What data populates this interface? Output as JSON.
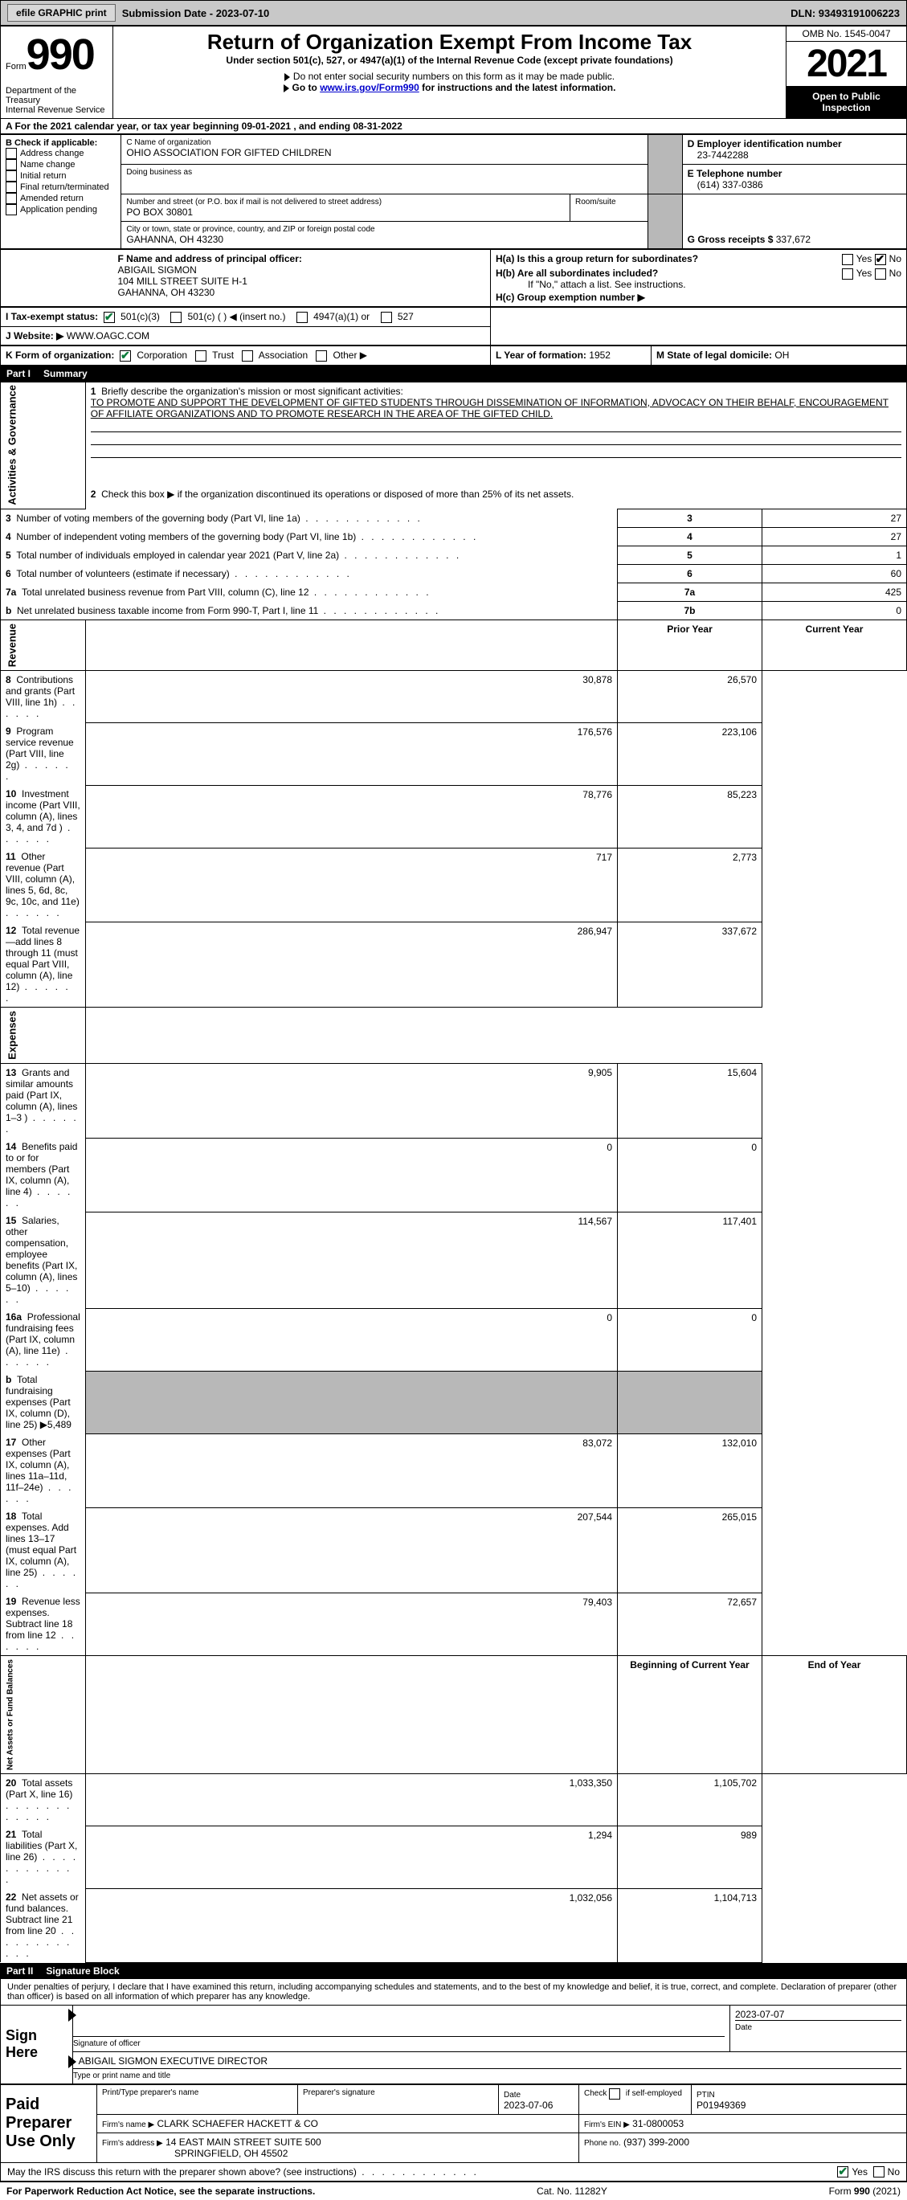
{
  "toolbar": {
    "efile_label": "efile GRAPHIC print",
    "submission_label": "Submission Date - 2023-07-10",
    "dln_label": "DLN: 93493191006223"
  },
  "header": {
    "form_label": "Form",
    "form_number": "990",
    "dept_label": "Department of the Treasury\nInternal Revenue Service",
    "title": "Return of Organization Exempt From Income Tax",
    "subtitle": "Under section 501(c), 527, or 4947(a)(1) of the Internal Revenue Code (except private foundations)",
    "ssn_note": "Do not enter social security numbers on this form as it may be made public.",
    "goto_prefix": "Go to ",
    "goto_link": "www.irs.gov/Form990",
    "goto_suffix": " for instructions and the latest information.",
    "omb": "OMB No. 1545-0047",
    "year": "2021",
    "open_inspect": "Open to Public Inspection"
  },
  "sectionA": {
    "line": "A For the 2021 calendar year, or tax year beginning 09-01-2021   , and ending 08-31-2022"
  },
  "sectionB": {
    "label": "B Check if applicable:",
    "items": [
      "Address change",
      "Name change",
      "Initial return",
      "Final return/terminated",
      "Amended return",
      "Application pending"
    ]
  },
  "sectionC": {
    "name_label": "C Name of organization",
    "name": "OHIO ASSOCIATION FOR GIFTED CHILDREN",
    "dba_label": "Doing business as",
    "street_label": "Number and street (or P.O. box if mail is not delivered to street address)",
    "street": "PO BOX 30801",
    "room_label": "Room/suite",
    "city_label": "City or town, state or province, country, and ZIP or foreign postal code",
    "city": "GAHANNA, OH  43230"
  },
  "sectionD": {
    "label": "D Employer identification number",
    "value": "23-7442288"
  },
  "sectionE": {
    "label": "E Telephone number",
    "value": "(614) 337-0386"
  },
  "sectionG": {
    "label": "G Gross receipts $",
    "value": "337,672"
  },
  "sectionF": {
    "label": "F  Name and address of principal officer:",
    "name": "ABIGAIL SIGMON",
    "addr1": "104 MILL STREET SUITE H-1",
    "addr2": "GAHANNA, OH  43230"
  },
  "sectionH": {
    "a_label": "H(a)  Is this a group return for subordinates?",
    "yes": "Yes",
    "no": "No",
    "b_label": "H(b)  Are all subordinates included?",
    "b_note": "If \"No,\" attach a list. See instructions.",
    "c_label": "H(c)  Group exemption number ▶"
  },
  "sectionI": {
    "label": "I    Tax-exempt status:",
    "opts": [
      "501(c)(3)",
      "501(c) (  ) ◀ (insert no.)",
      "4947(a)(1) or",
      "527"
    ]
  },
  "sectionJ": {
    "label": "J   Website: ▶",
    "value": "WWW.OAGC.COM"
  },
  "sectionK": {
    "label": "K Form of organization:",
    "opts": [
      "Corporation",
      "Trust",
      "Association",
      "Other ▶"
    ]
  },
  "sectionL": {
    "label": "L Year of formation:",
    "value": "1952"
  },
  "sectionM": {
    "label": "M State of legal domicile:",
    "value": "OH"
  },
  "partI": {
    "header_num": "Part I",
    "header_title": "Summary",
    "q1_label": "Briefly describe the organization's mission or most significant activities:",
    "q1_text": "TO PROMOTE AND SUPPORT THE DEVELOPMENT OF GIFTED STUDENTS THROUGH DISSEMINATION OF INFORMATION, ADVOCACY ON THEIR BEHALF, ENCOURAGEMENT OF AFFILIATE ORGANIZATIONS AND TO PROMOTE RESEARCH IN THE AREA OF THE GIFTED CHILD.",
    "q2": "Check this box ▶       if the organization discontinued its operations or disposed of more than 25% of its net assets.",
    "vertical_activities": "Activities & Governance",
    "vertical_revenue": "Revenue",
    "vertical_expenses": "Expenses",
    "vertical_netassets": "Net Assets or Fund Balances",
    "rows_top": [
      {
        "n": "3",
        "label": "Number of voting members of the governing body (Part VI, line 1a)",
        "box": "3",
        "val": "27"
      },
      {
        "n": "4",
        "label": "Number of independent voting members of the governing body (Part VI, line 1b)",
        "box": "4",
        "val": "27"
      },
      {
        "n": "5",
        "label": "Total number of individuals employed in calendar year 2021 (Part V, line 2a)",
        "box": "5",
        "val": "1"
      },
      {
        "n": "6",
        "label": "Total number of volunteers (estimate if necessary)",
        "box": "6",
        "val": "60"
      },
      {
        "n": "7a",
        "label": "Total unrelated business revenue from Part VIII, column (C), line 12",
        "box": "7a",
        "val": "425"
      },
      {
        "n": "b",
        "label": "Net unrelated business taxable income from Form 990-T, Part I, line 11",
        "box": "7b",
        "val": "0"
      }
    ],
    "col_prior": "Prior Year",
    "col_current": "Current Year",
    "rows_rev": [
      {
        "n": "8",
        "label": "Contributions and grants (Part VIII, line 1h)",
        "p": "30,878",
        "c": "26,570"
      },
      {
        "n": "9",
        "label": "Program service revenue (Part VIII, line 2g)",
        "p": "176,576",
        "c": "223,106"
      },
      {
        "n": "10",
        "label": "Investment income (Part VIII, column (A), lines 3, 4, and 7d )",
        "p": "78,776",
        "c": "85,223"
      },
      {
        "n": "11",
        "label": "Other revenue (Part VIII, column (A), lines 5, 6d, 8c, 9c, 10c, and 11e)",
        "p": "717",
        "c": "2,773"
      },
      {
        "n": "12",
        "label": "Total revenue—add lines 8 through 11 (must equal Part VIII, column (A), line 12)",
        "p": "286,947",
        "c": "337,672"
      }
    ],
    "rows_exp": [
      {
        "n": "13",
        "label": "Grants and similar amounts paid (Part IX, column (A), lines 1–3 )",
        "p": "9,905",
        "c": "15,604"
      },
      {
        "n": "14",
        "label": "Benefits paid to or for members (Part IX, column (A), line 4)",
        "p": "0",
        "c": "0"
      },
      {
        "n": "15",
        "label": "Salaries, other compensation, employee benefits (Part IX, column (A), lines 5–10)",
        "p": "114,567",
        "c": "117,401"
      },
      {
        "n": "16a",
        "label": "Professional fundraising fees (Part IX, column (A), line 11e)",
        "p": "0",
        "c": "0"
      },
      {
        "n": "b",
        "label": "Total fundraising expenses (Part IX, column (D), line 25) ▶5,489",
        "p": "",
        "c": "",
        "shaded": true
      },
      {
        "n": "17",
        "label": "Other expenses (Part IX, column (A), lines 11a–11d, 11f–24e)",
        "p": "83,072",
        "c": "132,010"
      },
      {
        "n": "18",
        "label": "Total expenses. Add lines 13–17 (must equal Part IX, column (A), line 25)",
        "p": "207,544",
        "c": "265,015"
      },
      {
        "n": "19",
        "label": "Revenue less expenses. Subtract line 18 from line 12",
        "p": "79,403",
        "c": "72,657"
      }
    ],
    "col_begin": "Beginning of Current Year",
    "col_end": "End of Year",
    "rows_net": [
      {
        "n": "20",
        "label": "Total assets (Part X, line 16)",
        "p": "1,033,350",
        "c": "1,105,702"
      },
      {
        "n": "21",
        "label": "Total liabilities (Part X, line 26)",
        "p": "1,294",
        "c": "989"
      },
      {
        "n": "22",
        "label": "Net assets or fund balances. Subtract line 21 from line 20",
        "p": "1,032,056",
        "c": "1,104,713"
      }
    ]
  },
  "partII": {
    "header_num": "Part II",
    "header_title": "Signature Block",
    "penalties": "Under penalties of perjury, I declare that I have examined this return, including accompanying schedules and statements, and to the best of my knowledge and belief, it is true, correct, and complete. Declaration of preparer (other than officer) is based on all information of which preparer has any knowledge.",
    "sign_here": "Sign Here",
    "sig_officer": "Signature of officer",
    "sig_date": "2023-07-07",
    "sig_date_label": "Date",
    "officer_name": "ABIGAIL SIGMON  EXECUTIVE DIRECTOR",
    "type_label": "Type or print name and title",
    "paid_block": "Paid Preparer Use Only",
    "prep_name_label": "Print/Type preparer's name",
    "prep_sig_label": "Preparer's signature",
    "prep_date_label": "Date",
    "prep_date": "2023-07-06",
    "self_emp": "Check        if self-employed",
    "ptin_label": "PTIN",
    "ptin": "P01949369",
    "firm_name_label": "Firm's name    ▶",
    "firm_name": "CLARK SCHAEFER HACKETT & CO",
    "firm_ein_label": "Firm's EIN ▶",
    "firm_ein": "31-0800053",
    "firm_addr_label": "Firm's address ▶",
    "firm_addr1": "14 EAST MAIN STREET SUITE 500",
    "firm_addr2": "SPRINGFIELD, OH  45502",
    "phone_label": "Phone no.",
    "phone": "(937) 399-2000",
    "discuss": "May the IRS discuss this return with the preparer shown above? (see instructions)",
    "yes": "Yes",
    "no": "No"
  },
  "footer": {
    "paperwork": "For Paperwork Reduction Act Notice, see the separate instructions.",
    "cat": "Cat. No. 11282Y",
    "form": "Form 990 (2021)"
  },
  "style": {
    "colors": {
      "toolbar_bg": "#c8c8c8",
      "shaded_bg": "#b8b8b8",
      "black": "#000000",
      "link": "#0000cc",
      "check_green": "#0a7a3a"
    },
    "fonts": {
      "base_pt": 12,
      "title_pt": 26,
      "year_pt": 48,
      "form_num_pt": 54
    }
  }
}
